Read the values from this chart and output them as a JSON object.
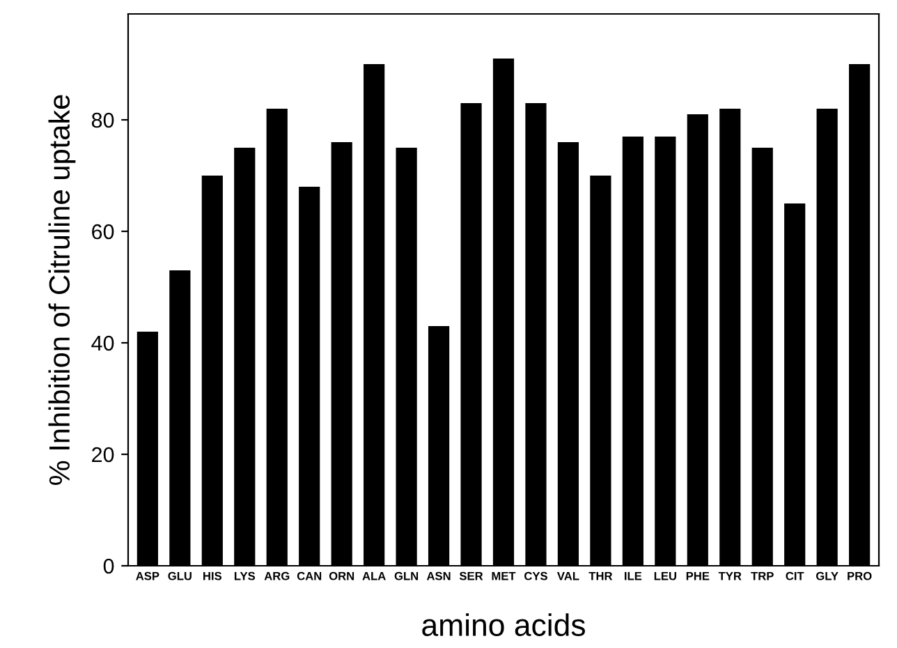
{
  "chart_data": {
    "type": "bar",
    "xlabel": "amino acids",
    "ylabel": "% Inhibition of Citruline uptake",
    "categories": [
      "ASP",
      "GLU",
      "HIS",
      "LYS",
      "ARG",
      "CAN",
      "ORN",
      "ALA",
      "GLN",
      "ASN",
      "SER",
      "MET",
      "CYS",
      "VAL",
      "THR",
      "ILE",
      "LEU",
      "PHE",
      "TYR",
      "TRP",
      "CIT",
      "GLY",
      "PRO"
    ],
    "values": [
      42,
      53,
      70,
      75,
      82,
      68,
      76,
      90,
      75,
      43,
      83,
      91,
      83,
      76,
      70,
      77,
      77,
      81,
      82,
      75,
      65,
      82,
      90
    ],
    "color": "#000000",
    "ylim": [
      0,
      99
    ],
    "yticks": [
      0,
      20,
      40,
      60,
      80
    ],
    "grid": false
  }
}
